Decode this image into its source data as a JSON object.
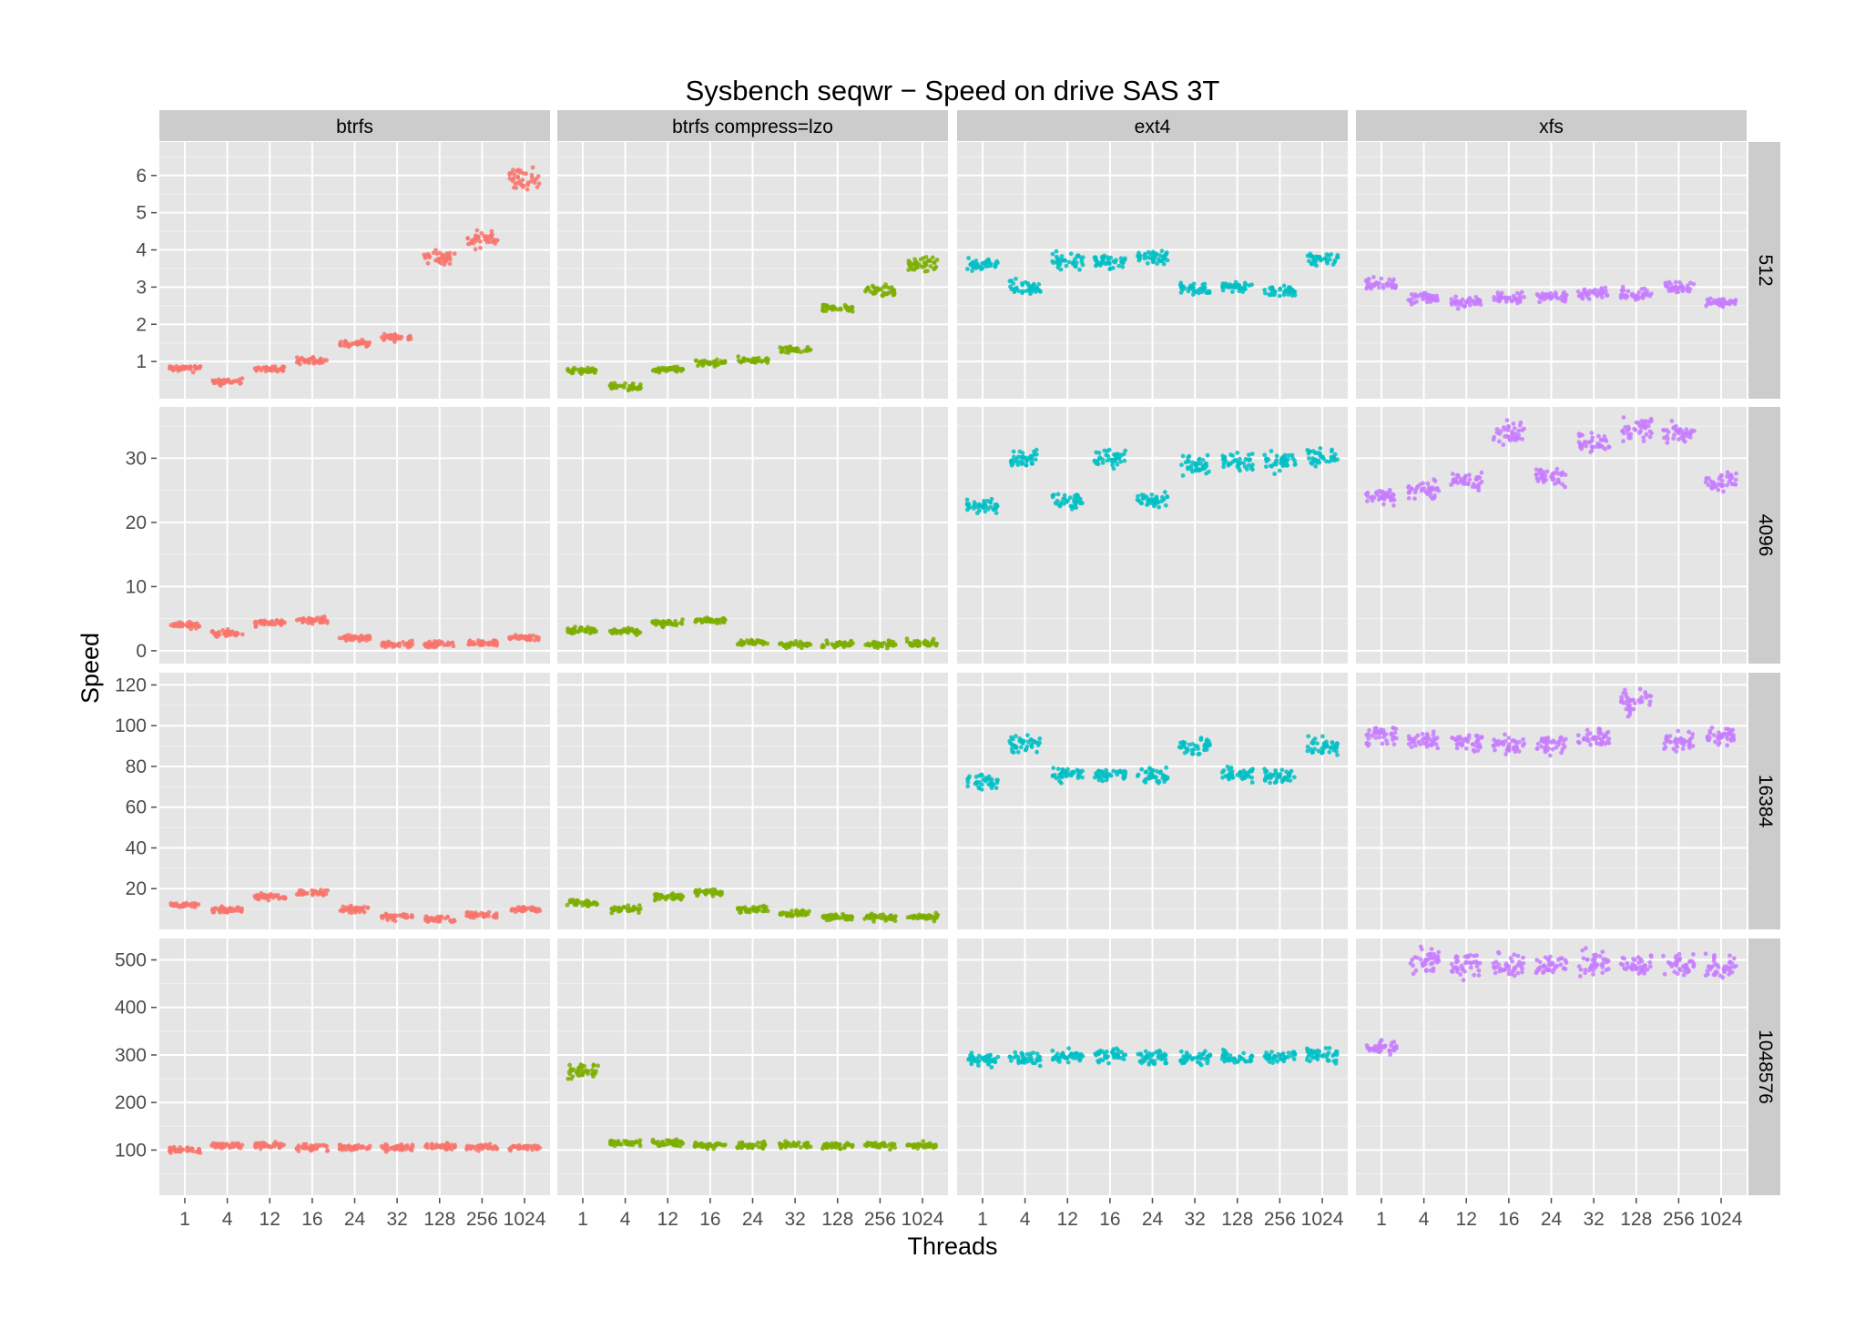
{
  "chart_data": {
    "type": "scatter",
    "title": "Sysbench seqwr − Speed on drive SAS 3T",
    "xlabel": "Threads",
    "ylabel": "Speed",
    "x_categories": [
      "1",
      "4",
      "12",
      "16",
      "24",
      "32",
      "128",
      "256",
      "1024"
    ],
    "facet_columns": [
      "btrfs",
      "btrfs compress=lzo",
      "ext4",
      "xfs"
    ],
    "facet_rows": [
      {
        "label": "512",
        "ylim": [
          0,
          6.9
        ],
        "ticks": [
          1,
          2,
          3,
          4,
          5,
          6
        ]
      },
      {
        "label": "4096",
        "ylim": [
          -2,
          38
        ],
        "ticks": [
          0,
          10,
          20,
          30
        ]
      },
      {
        "label": "16384",
        "ylim": [
          0,
          126
        ],
        "ticks": [
          20,
          40,
          60,
          80,
          100,
          120
        ]
      },
      {
        "label": "1048576",
        "ylim": [
          5,
          545
        ],
        "ticks": [
          100,
          200,
          300,
          400,
          500
        ]
      }
    ],
    "colors": {
      "btrfs": "#F8766D",
      "btrfs compress=lzo": "#7CAE00",
      "ext4": "#00BFC4",
      "xfs": "#C77CFF"
    },
    "grid": true,
    "legend": "none",
    "series_medians": {
      "512": {
        "btrfs": [
          0.82,
          0.45,
          0.8,
          1.02,
          1.48,
          1.65,
          3.8,
          4.3,
          5.9
        ],
        "btrfs compress=lzo": [
          0.75,
          0.32,
          0.78,
          0.95,
          1.02,
          1.32,
          2.45,
          2.9,
          3.6
        ],
        "ext4": [
          3.6,
          3.0,
          3.7,
          3.7,
          3.8,
          2.95,
          3.0,
          2.9,
          3.75
        ],
        "xfs": [
          3.1,
          2.7,
          2.6,
          2.7,
          2.75,
          2.85,
          2.8,
          3.0,
          2.6
        ]
      },
      "4096": {
        "btrfs": [
          4.0,
          2.6,
          4.3,
          4.8,
          2.0,
          1.0,
          1.0,
          1.2,
          2.0
        ],
        "btrfs compress=lzo": [
          3.2,
          3.0,
          4.3,
          4.7,
          1.3,
          1.0,
          1.0,
          1.0,
          1.2
        ],
        "ext4": [
          22.5,
          30.0,
          23.5,
          30.0,
          23.5,
          29.0,
          29.5,
          29.5,
          30.0
        ],
        "xfs": [
          24.0,
          25.0,
          26.5,
          34.0,
          27.0,
          32.5,
          34.5,
          34.0,
          26.5
        ]
      },
      "16384": {
        "btrfs": [
          12.0,
          9.5,
          16.0,
          18.0,
          10.0,
          6.0,
          5.0,
          7.0,
          10.0
        ],
        "btrfs compress=lzo": [
          13.0,
          10.0,
          16.0,
          18.0,
          10.0,
          8.0,
          6.0,
          6.0,
          6.0
        ],
        "ext4": [
          72.0,
          91.0,
          76.0,
          76.0,
          76.0,
          90.0,
          76.0,
          75.0,
          90.0
        ],
        "xfs": [
          95.0,
          93.0,
          92.0,
          91.0,
          91.0,
          94.0,
          112.0,
          92.0,
          95.0
        ]
      },
      "1048576": {
        "btrfs": [
          100.0,
          110.0,
          110.0,
          105.0,
          105.0,
          105.0,
          108.0,
          105.0,
          105.0
        ],
        "btrfs compress=lzo": [
          265.0,
          115.0,
          115.0,
          110.0,
          110.0,
          110.0,
          110.0,
          110.0,
          110.0
        ],
        "ext4": [
          290.0,
          293.0,
          297.0,
          300.0,
          295.0,
          295.0,
          295.0,
          296.0,
          300.0
        ],
        "xfs": [
          315.0,
          500.0,
          495.0,
          490.0,
          487.0,
          495.0,
          485.0,
          488.0,
          485.0
        ]
      }
    }
  }
}
